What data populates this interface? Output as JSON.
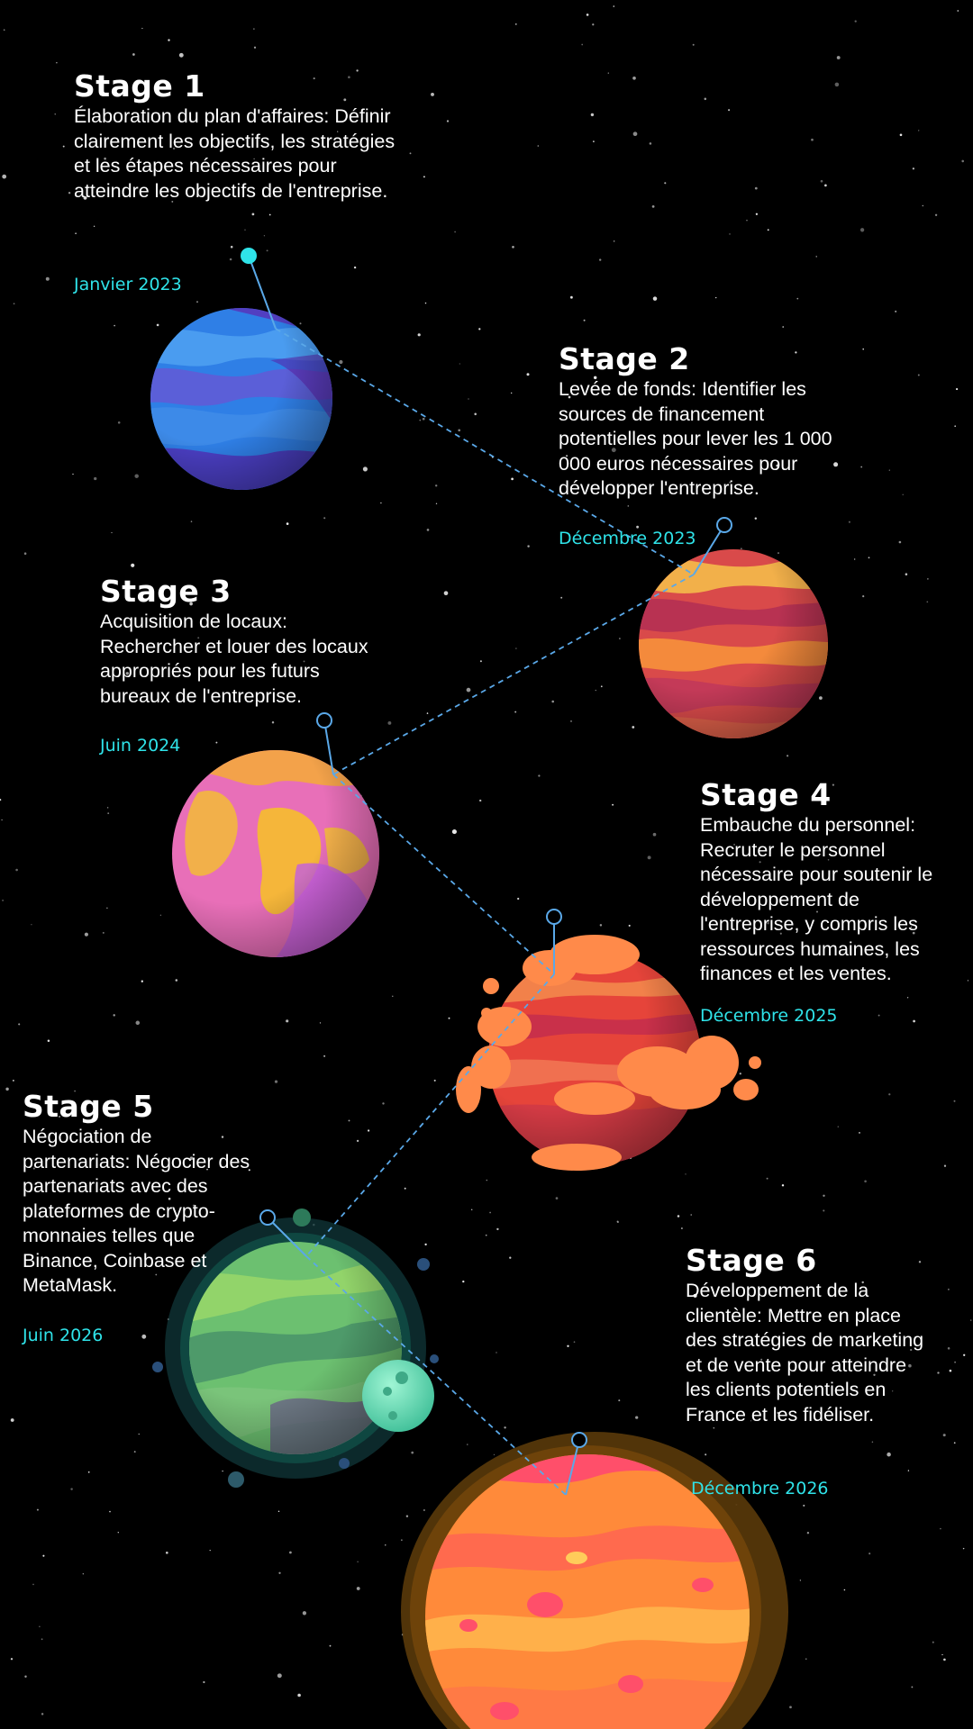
{
  "colors": {
    "background": "#000000",
    "date": "#2fe3e9",
    "connector": "#5aa8e8",
    "text": "#ffffff"
  },
  "stages": [
    {
      "title": "Stage 1",
      "description": "Élaboration du plan d'affaires: Définir clairement les objectifs, les stratégies et les étapes nécessaires pour atteindre les objectifs de l'entreprise.",
      "date": "Janvier 2023",
      "planet": "blue-striped-planet"
    },
    {
      "title": "Stage 2",
      "description": "Levée de fonds: Identifier les sources de financement potentielles pour lever les 1 000 000 euros nécessaires pour développer l'entreprise.",
      "date": "Décembre 2023",
      "planet": "red-striped-planet"
    },
    {
      "title": "Stage 3",
      "description": "Acquisition de locaux: Rechercher et louer des locaux appropriés pour les futurs bureaux de l'entreprise.",
      "date": "Juin 2024",
      "planet": "pink-earth-planet"
    },
    {
      "title": "Stage 4",
      "description": "Embauche du personnel: Recruter le personnel nécessaire pour soutenir le développement de l'entreprise, y compris les ressources humaines, les finances et les ventes.",
      "date": "Décembre 2025",
      "planet": "red-cloud-planet"
    },
    {
      "title": "Stage 5",
      "description": "Négociation de partenariats: Négocier des partenariats avec des plateformes de crypto-monnaies telles que Binance, Coinbase et MetaMask.",
      "date": "Juin 2026",
      "planet": "green-planet-with-moon"
    },
    {
      "title": "Stage 6",
      "description": "Développement de la clientèle: Mettre en place des stratégies de marketing et de vente pour atteindre les clients potentiels en France et les fidéliser.",
      "date": "Décembre 2026",
      "planet": "orange-lava-planet"
    }
  ]
}
